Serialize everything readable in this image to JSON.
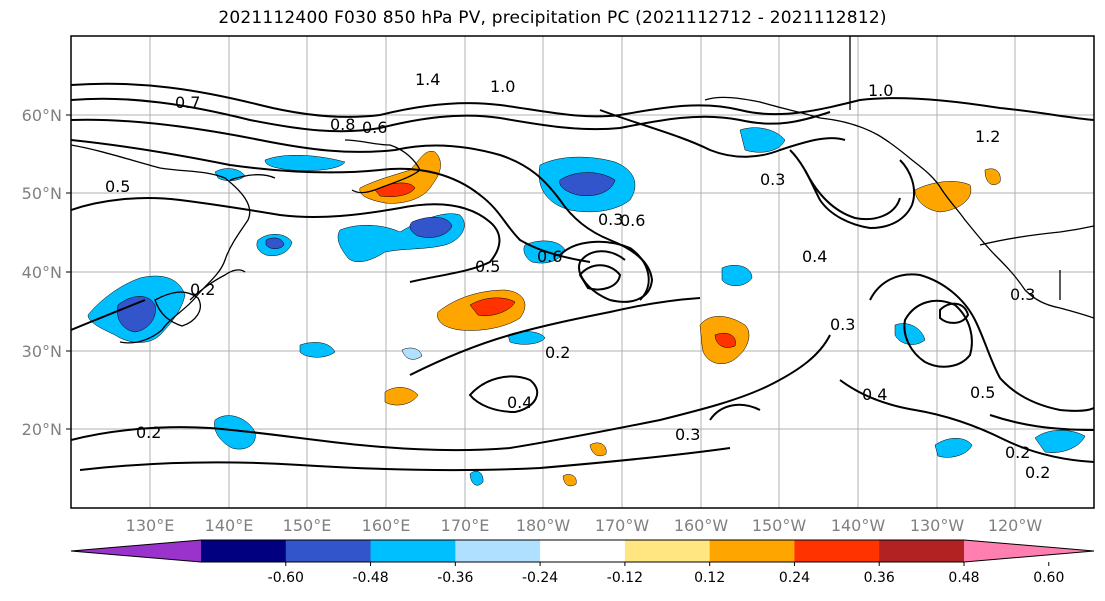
{
  "title": "2021112400 F030 850 hPa PV, precipitation PC (2021112712 - 2021112812)",
  "lat_labels": [
    "60°N",
    "50°N",
    "40°N",
    "30°N",
    "20°N"
  ],
  "lon_labels": [
    "130°E",
    "140°E",
    "150°E",
    "160°E",
    "170°E",
    "180°W",
    "170°W",
    "160°W",
    "150°W",
    "140°W",
    "130°W",
    "120°W"
  ],
  "colorbar": {
    "ticks": [
      "-0.60",
      "-0.48",
      "-0.36",
      "-0.24",
      "-0.12",
      "0.12",
      "0.24",
      "0.36",
      "0.48",
      "0.60"
    ],
    "colors": [
      "#9933cc",
      "#000080",
      "#3355cc",
      "#00bfff",
      "#b0e0ff",
      "#ffffff",
      "#ffe680",
      "#ffa500",
      "#ff3300",
      "#b22222",
      "#ff80b0"
    ]
  },
  "contour_labels": [
    "0.6",
    "0.3",
    "0.3",
    "0.6",
    "0.5",
    "0.4",
    "0.2",
    "0.2",
    "0.4",
    "0.2",
    "0.3",
    "0.3",
    "0.4",
    "0.5",
    "0.2",
    "0.2",
    "0.7",
    "1.0",
    "1.4",
    "1.0",
    "0.8",
    "0.6",
    "0.5",
    "0.3",
    "1.2"
  ]
}
